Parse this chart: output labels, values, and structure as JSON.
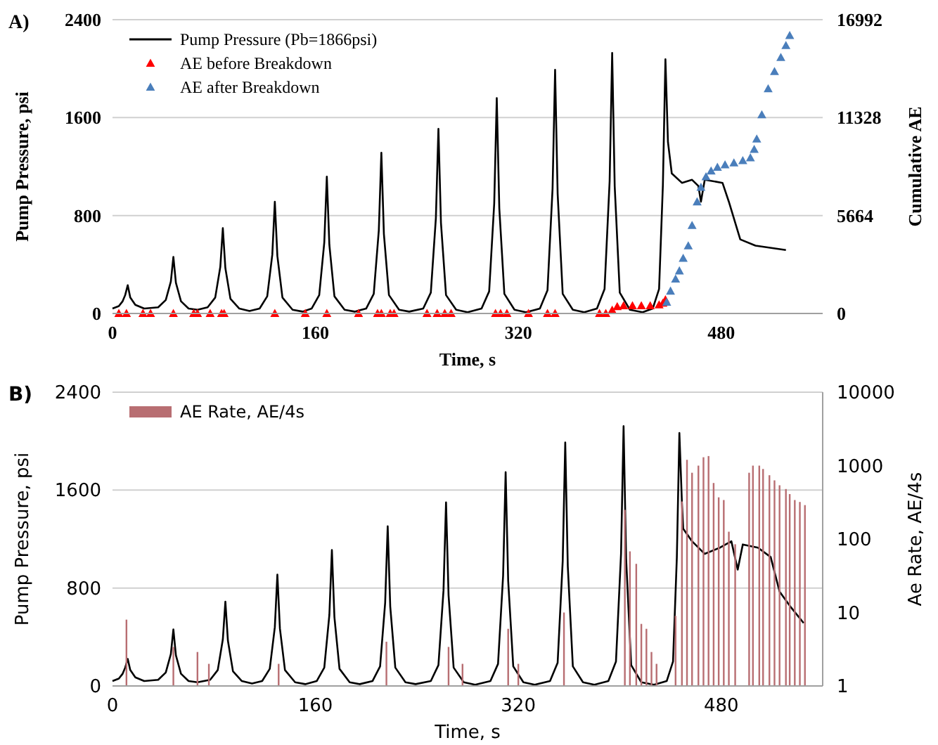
{
  "chart_data": [
    {
      "type": "line",
      "title": "A)",
      "xlabel": "Time, s",
      "ylabel": "Pump Pressure, psi",
      "y2label": "Cumulative AE",
      "xlim": [
        0,
        560
      ],
      "xticks": [
        0,
        160,
        320,
        480
      ],
      "ylim": [
        0,
        2400
      ],
      "yticks": [
        0,
        800,
        1600,
        2400
      ],
      "y2lim": [
        0,
        16992
      ],
      "y2ticks": [
        0,
        5664,
        11328,
        16992
      ],
      "grid": "y",
      "legend": "top left",
      "series": [
        {
          "name": "Pump Pressure (Pb=1866psi)",
          "color": "#000000",
          "marker": "none",
          "x": [
            0,
            5,
            8,
            10,
            12,
            14,
            18,
            25,
            36,
            42,
            46,
            48,
            50,
            54,
            60,
            67,
            75,
            81,
            85,
            87,
            89,
            93,
            100,
            108,
            116,
            122,
            126,
            128,
            130,
            134,
            142,
            150,
            157,
            163,
            167,
            169,
            171,
            175,
            183,
            191,
            200,
            206,
            210,
            212,
            214,
            218,
            226,
            234,
            245,
            251,
            255,
            257,
            259,
            263,
            271,
            280,
            291,
            297,
            301,
            303,
            305,
            309,
            317,
            326,
            337,
            343,
            347,
            349,
            351,
            355,
            363,
            372,
            382,
            388,
            392,
            394,
            396,
            400,
            408,
            418,
            426,
            431,
            434,
            436,
            438,
            441,
            449,
            457,
            462,
            464,
            467,
            481,
            486,
            495,
            507,
            531
          ],
          "values": [
            40,
            60,
            100,
            150,
            231,
            130,
            70,
            40,
            50,
            110,
            260,
            462,
            250,
            100,
            40,
            30,
            50,
            130,
            380,
            697,
            370,
            120,
            40,
            20,
            40,
            140,
            480,
            913,
            470,
            130,
            30,
            15,
            40,
            150,
            580,
            1118,
            560,
            140,
            30,
            15,
            40,
            160,
            680,
            1313,
            650,
            150,
            30,
            15,
            40,
            170,
            780,
            1508,
            740,
            150,
            30,
            10,
            40,
            180,
            900,
            1759,
            860,
            160,
            30,
            10,
            40,
            190,
            1020,
            1990,
            980,
            160,
            30,
            10,
            40,
            200,
            1080,
            2128,
            1040,
            170,
            30,
            10,
            40,
            200,
            1050,
            2077,
            1400,
            1144,
            1067,
            1092,
            1041,
            913,
            1092,
            1067,
            913,
            605,
            554,
            518
          ]
        },
        {
          "name": "AE before Breakdown",
          "type": "scatter",
          "axis": "y2",
          "color": "#ff0000",
          "marker": "triangle",
          "x": [
            5,
            11,
            24,
            30,
            48,
            64,
            67,
            77,
            86,
            88,
            128,
            152,
            169,
            194,
            209,
            212,
            219,
            222,
            248,
            256,
            262,
            267,
            302,
            306,
            311,
            328,
            343,
            349,
            384,
            389,
            394,
            398,
            403,
            410,
            417,
            424,
            431,
            434,
            436
          ],
          "values": [
            0,
            0,
            0,
            0,
            0,
            0,
            0,
            0,
            0,
            0,
            0,
            0,
            0,
            0,
            0,
            0,
            0,
            0,
            0,
            0,
            0,
            0,
            0,
            0,
            0,
            0,
            0,
            0,
            0,
            0,
            200,
            400,
            450,
            450,
            450,
            450,
            500,
            600,
            800
          ]
        },
        {
          "name": "AE after Breakdown",
          "type": "scatter",
          "axis": "y2",
          "color": "#4a7ebb",
          "marker": "triangle",
          "x": [
            437,
            440,
            444,
            447,
            450,
            454,
            457,
            461,
            464,
            468,
            472,
            477,
            483,
            490,
            497,
            503,
            506,
            508,
            512,
            517,
            522,
            527,
            531,
            534
          ],
          "values": [
            654,
            1300,
            2000,
            2469,
            3200,
            3921,
            5100,
            6463,
            7300,
            7915,
            8250,
            8460,
            8600,
            8714,
            8850,
            9004,
            9500,
            10094,
            11500,
            12998,
            14000,
            14813,
            15500,
            16084
          ]
        }
      ]
    },
    {
      "type": "line",
      "title": "B)",
      "xlabel": "Time, s",
      "ylabel": "Pump Pressure, psi",
      "y2label": "Ae Rate, AE/4s",
      "xlim": [
        0,
        560
      ],
      "xticks": [
        0,
        160,
        320,
        480
      ],
      "ylim": [
        0,
        2400
      ],
      "yticks": [
        0,
        800,
        1600,
        2400
      ],
      "y2lim": [
        1,
        10000
      ],
      "y2ticks": [
        1,
        10,
        100,
        1000,
        10000
      ],
      "log": "y2",
      "grid": "y",
      "legend": "top left",
      "series": [
        {
          "name": "AE Rate, AE/4s",
          "type": "bar",
          "axis": "y2",
          "color": "#b86e72",
          "x": [
            11,
            48,
            67,
            76,
            131,
            216,
            265,
            276,
            312,
            320,
            356,
            404,
            408,
            413,
            417,
            421,
            425,
            429,
            444,
            449,
            453,
            457,
            462,
            466,
            470,
            474,
            478,
            482,
            486,
            491,
            502,
            505,
            510,
            513,
            518,
            522,
            526,
            531,
            534,
            538,
            542,
            546
          ],
          "values": [
            8,
            3.4,
            2.9,
            2,
            2,
            4,
            3.4,
            2,
            6,
            2,
            10,
            250,
            68,
            46,
            7,
            6,
            2.9,
            2,
            9,
            325,
            1200,
            800,
            1000,
            1300,
            1350,
            580,
            370,
            340,
            126,
            85,
            800,
            1000,
            1000,
            900,
            740,
            630,
            540,
            480,
            410,
            340,
            320,
            290
          ]
        },
        {
          "color": "#000000",
          "marker": "none",
          "x": [
            0,
            5,
            8,
            10,
            12,
            14,
            18,
            25,
            36,
            42,
            46,
            48,
            50,
            54,
            60,
            67,
            77,
            83,
            87,
            89,
            91,
            95,
            102,
            110,
            118,
            124,
            128,
            130,
            132,
            136,
            144,
            152,
            161,
            167,
            171,
            173,
            175,
            179,
            187,
            195,
            205,
            211,
            215,
            217,
            219,
            223,
            231,
            239,
            251,
            257,
            261,
            263,
            265,
            269,
            277,
            286,
            298,
            304,
            308,
            310,
            312,
            316,
            324,
            333,
            345,
            351,
            355,
            357,
            359,
            363,
            371,
            380,
            391,
            397,
            401,
            403,
            405,
            409,
            417,
            427,
            437,
            442,
            445,
            447,
            449,
            450,
            457,
            467,
            479,
            488,
            493,
            497,
            509,
            519,
            526,
            535,
            545
          ],
          "values": [
            40,
            60,
            100,
            150,
            221,
            130,
            70,
            40,
            50,
            110,
            260,
            462,
            250,
            100,
            40,
            30,
            50,
            130,
            380,
            689,
            370,
            120,
            40,
            20,
            40,
            140,
            480,
            910,
            470,
            130,
            30,
            15,
            40,
            150,
            580,
            1110,
            560,
            140,
            30,
            15,
            40,
            160,
            680,
            1305,
            650,
            150,
            30,
            15,
            40,
            170,
            780,
            1500,
            740,
            150,
            30,
            10,
            40,
            180,
            900,
            1747,
            860,
            160,
            30,
            10,
            40,
            190,
            1020,
            1989,
            980,
            160,
            30,
            10,
            40,
            200,
            1080,
            2122,
            1040,
            170,
            30,
            10,
            40,
            200,
            1050,
            2066,
            1500,
            1285,
            1182,
            1079,
            1130,
            1182,
            951,
            1156,
            1130,
            1053,
            771,
            642,
            514
          ]
        }
      ]
    }
  ]
}
